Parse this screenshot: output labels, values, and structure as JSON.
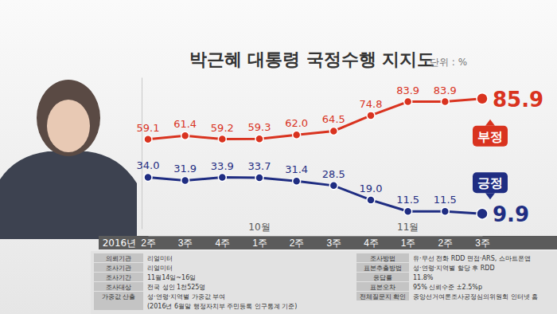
{
  "chart_data": {
    "type": "line",
    "title": "박근혜 대통령 국정수행 지지도",
    "unit": "단위 : %",
    "year_label": "2016년",
    "categories": [
      "2주",
      "3주",
      "4주",
      "1주",
      "2주",
      "3주",
      "4주",
      "1주",
      "2주",
      "3주"
    ],
    "months": [
      null,
      null,
      null,
      "10월",
      null,
      null,
      null,
      "11월",
      null,
      null
    ],
    "ylim": [
      0,
      100
    ],
    "yticks": [],
    "tick_labels": "x",
    "data_labels": true,
    "series": [
      {
        "name": "부정",
        "color": "#d9331f",
        "marker": "circle",
        "values": [
          59.1,
          61.4,
          59.2,
          59.3,
          62.0,
          64.5,
          74.8,
          83.9,
          83.9,
          85.9
        ],
        "value_labels": [
          "59.1",
          "61.4",
          "59.2",
          "59.3",
          "62.0",
          "64.5",
          "74.8",
          "83.9",
          "83.9",
          "85.9"
        ]
      },
      {
        "name": "긍정",
        "color": "#1f2d82",
        "marker": "circle",
        "values": [
          34.0,
          31.9,
          33.9,
          33.7,
          31.4,
          28.5,
          19.0,
          11.5,
          11.5,
          9.9
        ],
        "value_labels": [
          "34.0",
          "31.9",
          "33.9",
          "33.7",
          "31.4",
          "28.5",
          "19.0",
          "11.5",
          "11.5",
          "9.9"
        ]
      }
    ]
  },
  "survey_table": {
    "left": [
      {
        "label": "의뢰기관",
        "lines": [
          "리얼미터"
        ]
      },
      {
        "label": "조사기관",
        "lines": [
          "리얼미터"
        ]
      },
      {
        "label": "조사기간",
        "lines": [
          "11월14일~16일"
        ]
      },
      {
        "label": "조사대상",
        "lines": [
          "전국 성인 1천525명"
        ]
      },
      {
        "label": "가중값 산출",
        "lines": [
          "성·연령·지역별 가중값 부여",
          "(2016년 6월말 행정자치부 주민등록 인구통계 기준)"
        ]
      }
    ],
    "right": [
      {
        "label": "조사방법",
        "lines": [
          "유·무선 전화 RDD 면접·ARS, 스마트폰앱"
        ]
      },
      {
        "label": "표본추출방법",
        "lines": [
          "성·연령·지역별 할당 후 RDD"
        ]
      },
      {
        "label": "응답률",
        "lines": [
          "11.8%"
        ]
      },
      {
        "label": "표본오차",
        "lines": [
          "95% 신뢰수준 ±2.5%p"
        ]
      },
      {
        "label": "전체질문지 확인",
        "lines": [
          "중앙선거여론조사공정심의위원회 인터넷 홈"
        ]
      }
    ]
  }
}
